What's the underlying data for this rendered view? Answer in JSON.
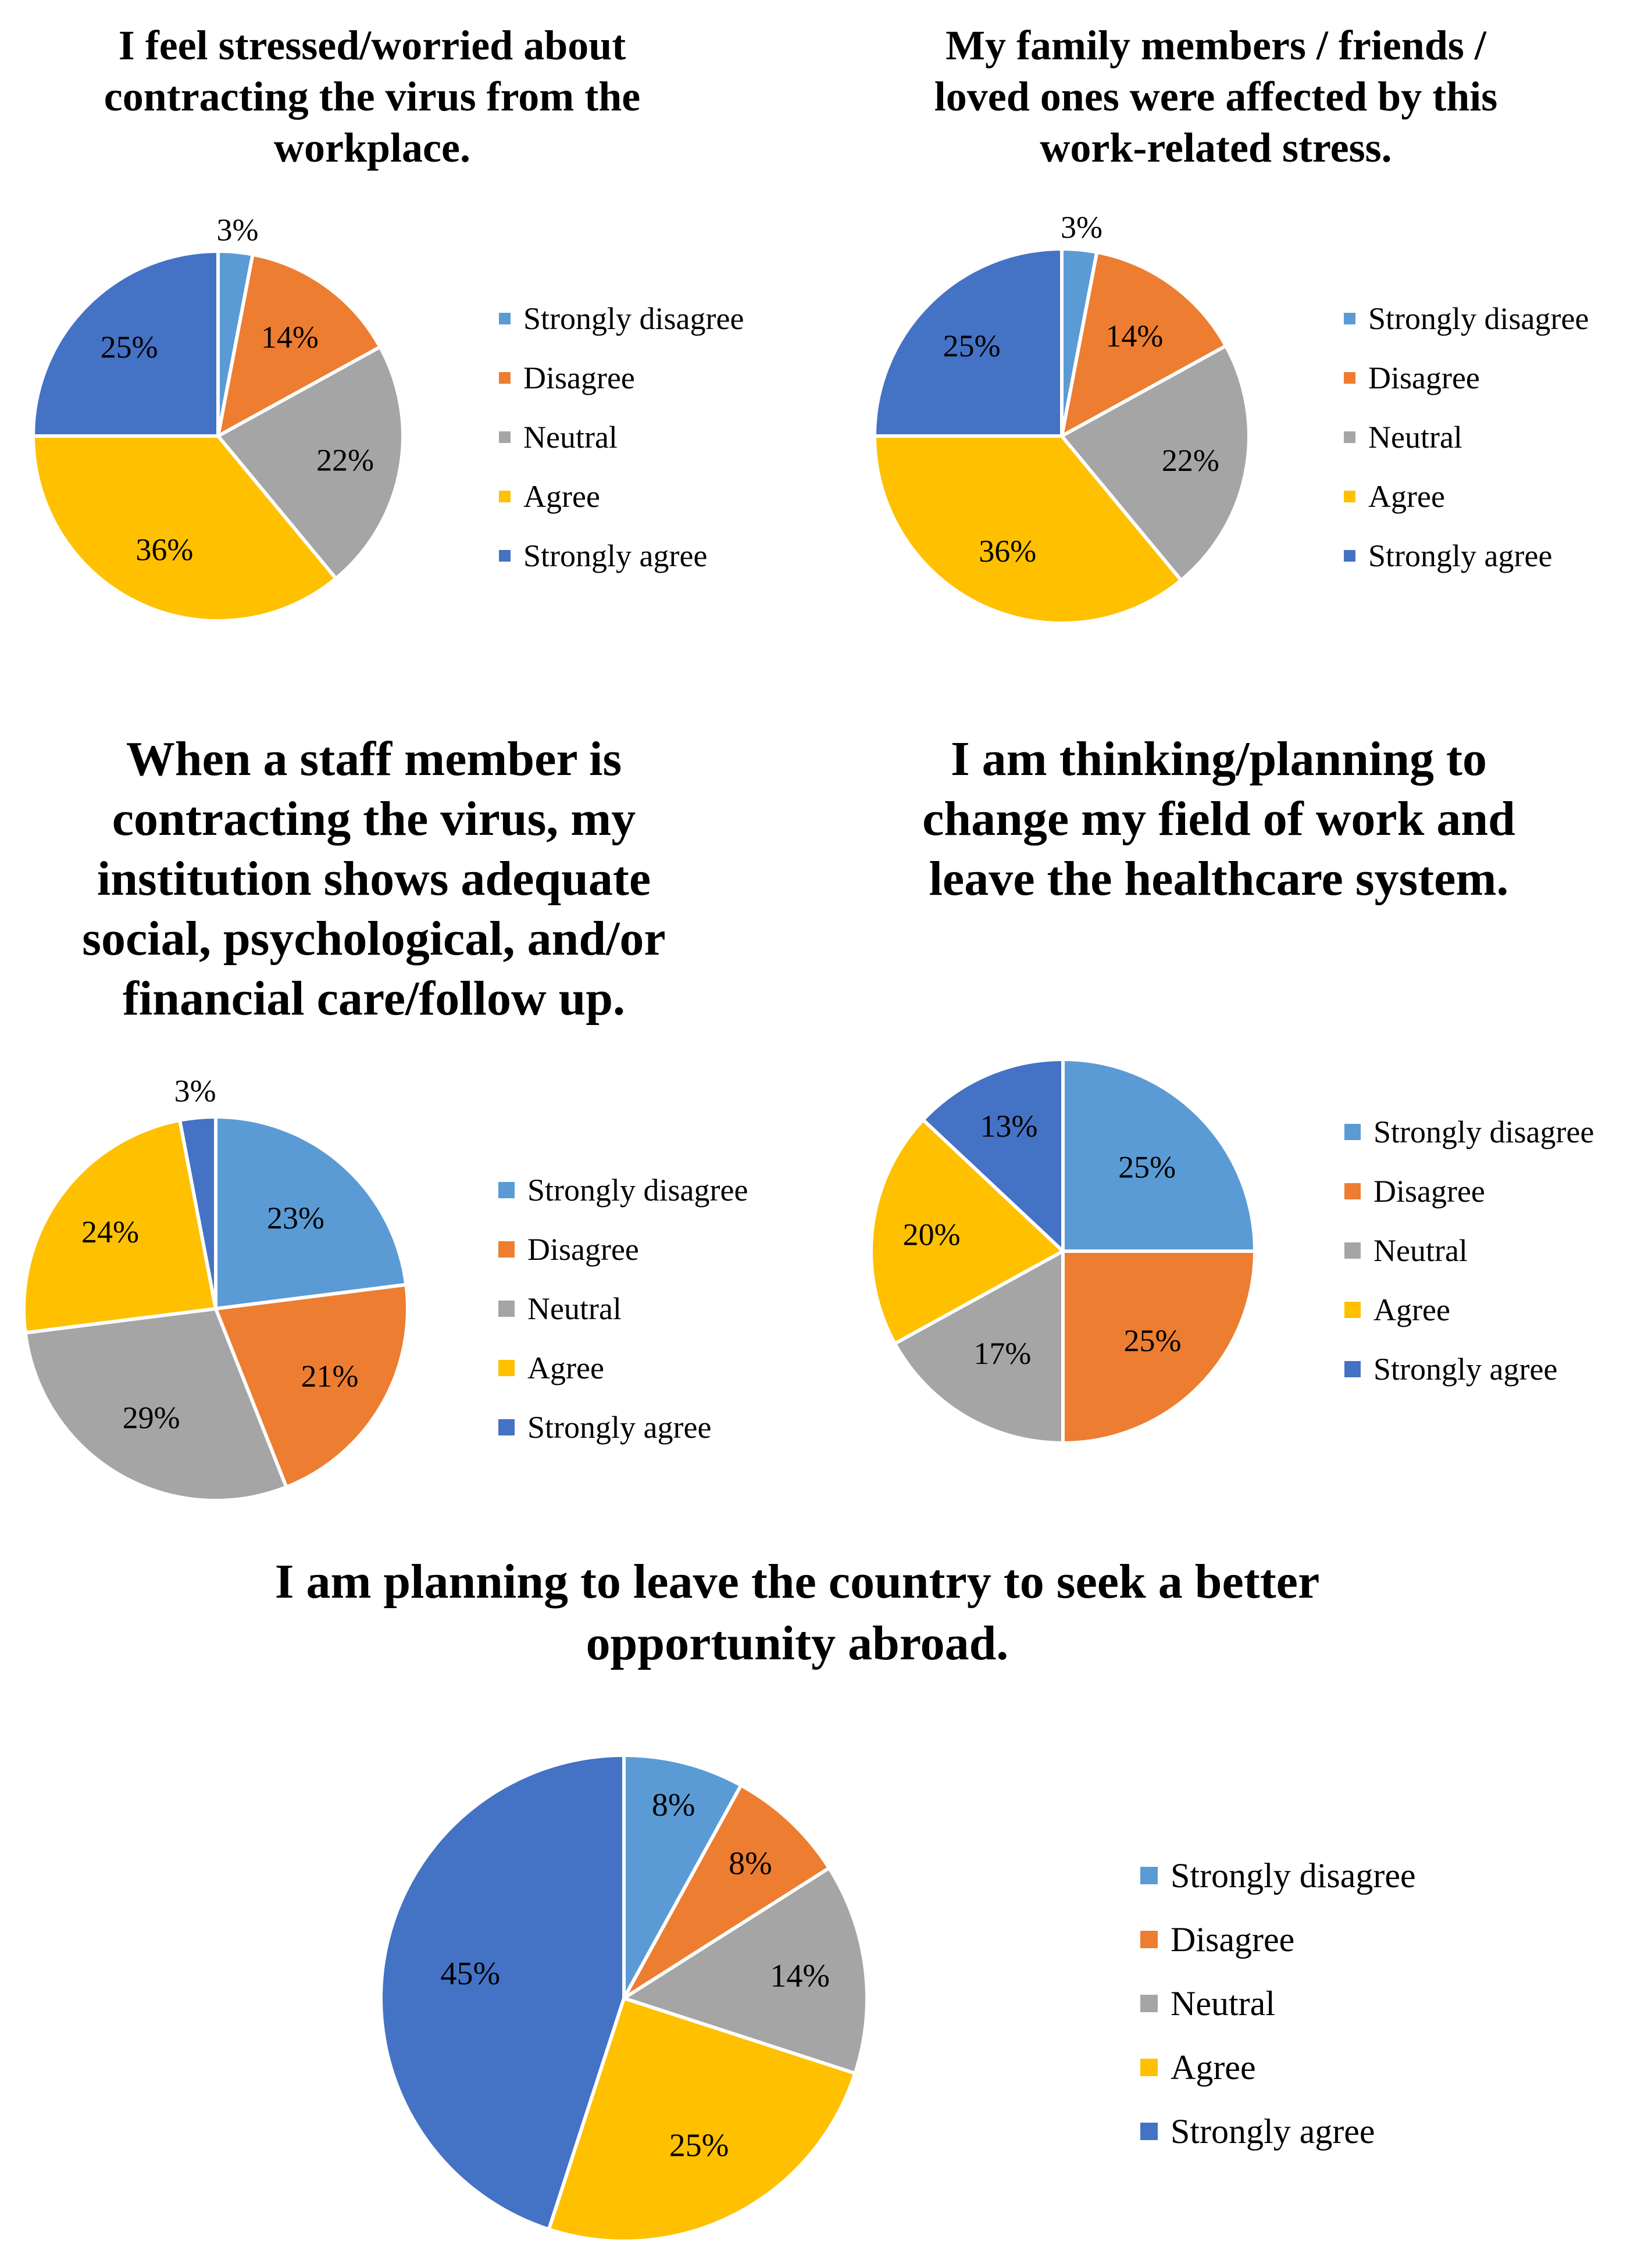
{
  "colors": {
    "strongly_disagree": "#5B9BD5",
    "disagree": "#ED7D31",
    "neutral": "#A5A5A5",
    "agree": "#FFC000",
    "strongly_agree": "#4472C4"
  },
  "chart_data": [
    {
      "type": "pie",
      "title": [
        "I feel stressed/worried about",
        "contracting the virus from the",
        "workplace."
      ],
      "categories": [
        "Strongly disagree",
        "Disagree",
        "Neutral",
        "Agree",
        "Strongly agree"
      ],
      "values": [
        3,
        14,
        22,
        36,
        25
      ],
      "labels": [
        "3%",
        "14%",
        "22%",
        "36%",
        "25%"
      ],
      "legend": [
        "Strongly disagree",
        "Disagree",
        "Neutral",
        "Agree",
        "Strongly agree"
      ],
      "legend_position": "right"
    },
    {
      "type": "pie",
      "title": [
        "My family members / friends /",
        "loved ones were affected by this",
        "work-related stress."
      ],
      "categories": [
        "Strongly disagree",
        "Disagree",
        "Neutral",
        "Agree",
        "Strongly agree"
      ],
      "values": [
        3,
        14,
        22,
        36,
        25
      ],
      "labels": [
        "3%",
        "14%",
        "22%",
        "36%",
        "25%"
      ],
      "legend": [
        "Strongly disagree",
        "Disagree",
        "Neutral",
        "Agree",
        "Strongly agree"
      ],
      "legend_position": "right"
    },
    {
      "type": "pie",
      "title": [
        "When a staff member is",
        "contracting the virus, my",
        "institution shows adequate",
        "social, psychological, and/or",
        "financial care/follow up."
      ],
      "categories": [
        "Strongly disagree",
        "Disagree",
        "Neutral",
        "Agree",
        "Strongly agree"
      ],
      "values": [
        23,
        21,
        29,
        24,
        3
      ],
      "labels": [
        "23%",
        "21%",
        "29%",
        "24%",
        "3%"
      ],
      "legend": [
        "Strongly disagree",
        "Disagree",
        "Neutral",
        "Agree",
        "Strongly agree"
      ],
      "legend_position": "right"
    },
    {
      "type": "pie",
      "title": [
        "I am thinking/planning to",
        "change my field of work and",
        "leave the healthcare system."
      ],
      "categories": [
        "Strongly disagree",
        "Disagree",
        "Neutral",
        "Agree",
        "Strongly agree"
      ],
      "values": [
        25,
        25,
        17,
        20,
        13
      ],
      "labels": [
        "25%",
        "25%",
        "17%",
        "20%",
        "13%"
      ],
      "legend": [
        "Strongly disagree",
        "Disagree",
        "Neutral",
        "Agree",
        "Strongly agree"
      ],
      "legend_position": "right"
    },
    {
      "type": "pie",
      "title": [
        "I am planning to leave the country to seek a better",
        "opportunity abroad."
      ],
      "categories": [
        "Strongly disagree",
        "Disagree",
        "Neutral",
        "Agree",
        "Strongly agree"
      ],
      "values": [
        8,
        8,
        14,
        25,
        45
      ],
      "labels": [
        "8%",
        "8%",
        "14%",
        "25%",
        "45%"
      ],
      "legend": [
        "Strongly disagree",
        "Disagree",
        "Neutral",
        "Agree",
        "Strongly agree"
      ],
      "legend_position": "right"
    }
  ]
}
